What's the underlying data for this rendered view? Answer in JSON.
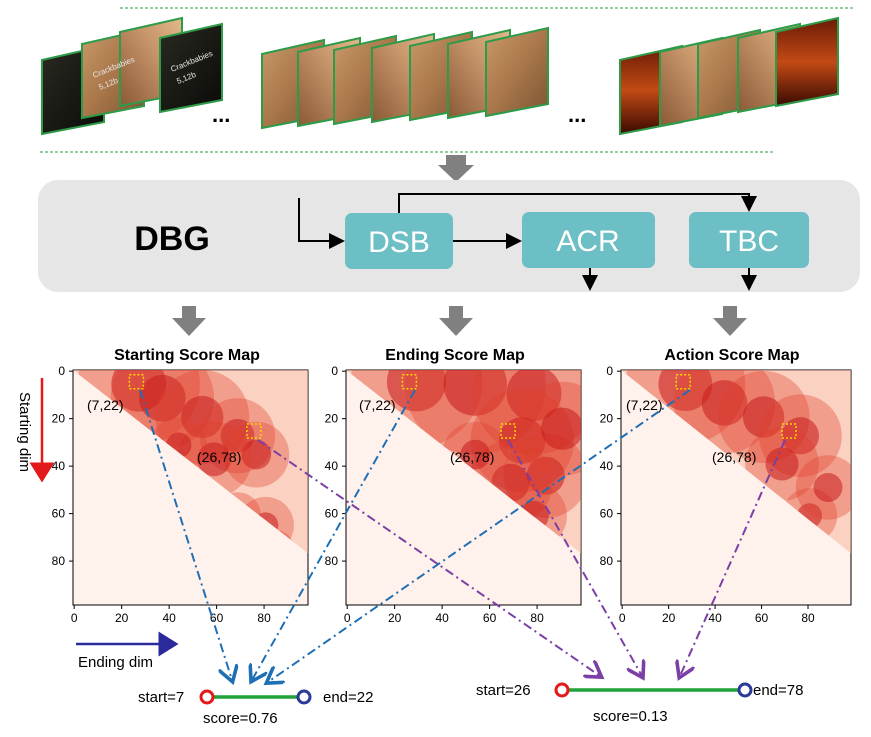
{
  "module": {
    "name": "DBG",
    "blocks": [
      "DSB",
      "ACR",
      "TBC"
    ]
  },
  "frames": {
    "ellipsis": "...",
    "overlay_text": [
      "Crackbabies",
      "5,12b"
    ]
  },
  "maps": [
    {
      "title": "Starting Score Map",
      "point_a": "(7,22)",
      "point_b": "(26,78)",
      "x_ticks": [
        "0",
        "20",
        "40",
        "60",
        "80"
      ],
      "y_ticks": [
        "0",
        "20",
        "40",
        "60",
        "80"
      ]
    },
    {
      "title": "Ending Score Map",
      "point_a": "(7,22)",
      "point_b": "(26,78)",
      "x_ticks": [
        "0",
        "20",
        "40",
        "60",
        "80"
      ],
      "y_ticks": [
        "0",
        "20",
        "40",
        "60",
        "80"
      ]
    },
    {
      "title": "Action Score Map",
      "point_a": "(7,22)",
      "point_b": "(26,78)",
      "x_ticks": [
        "0",
        "20",
        "40",
        "60",
        "80"
      ],
      "y_ticks": [
        "0",
        "20",
        "40",
        "60",
        "80"
      ]
    }
  ],
  "axes": {
    "starting_dim": "Starting dim",
    "ending_dim": "Ending dim"
  },
  "results": [
    {
      "start": "start=7",
      "end": "end=22",
      "score": "score=0.76"
    },
    {
      "start": "start=26",
      "end": "end=78",
      "score": "score=0.13"
    }
  ],
  "colors": {
    "block": "#6cbfc4",
    "panel": "#e6e6e6",
    "down_arrow": "#808080",
    "heat_bg": "#fff1ec",
    "heat_strong": "#c81b1b",
    "blue_line": "#1f6fb5",
    "purple_line": "#7b3fa5",
    "segment": "#1fa33a",
    "start_marker": "#e31a1c",
    "end_marker": "#2a3a9a",
    "starting_arrow": "#e31a1c",
    "ending_arrow": "#2a2a9a",
    "highlight_box": "#ffd700"
  }
}
